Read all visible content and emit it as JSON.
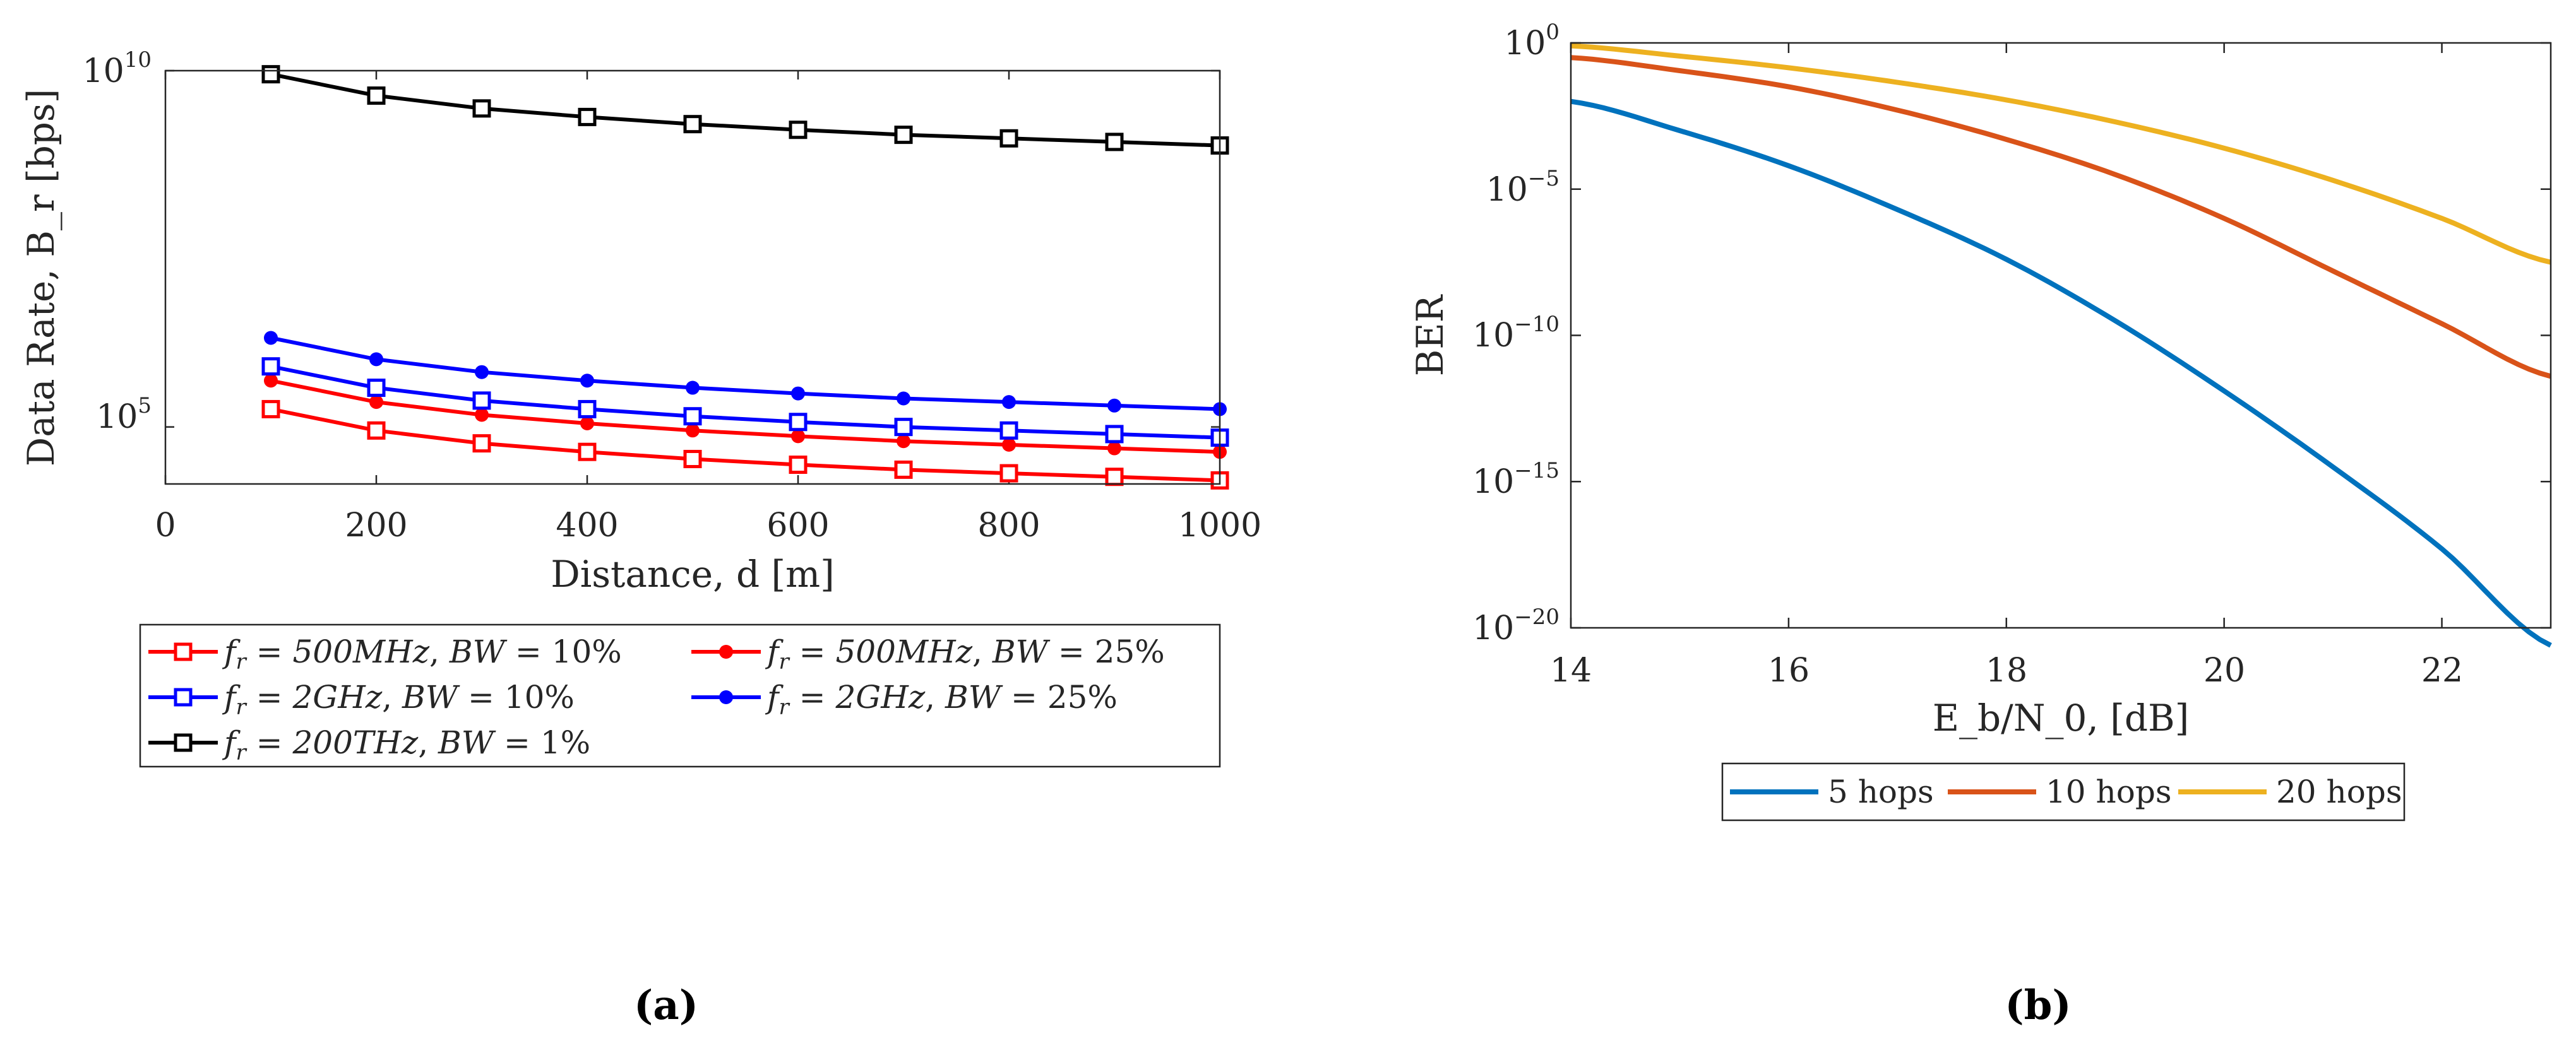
{
  "chart_data": [
    {
      "type": "line",
      "panel_label": "(a)",
      "xlabel": "Distance, d [m]",
      "ylabel": "Data Rate, B_r [bps]",
      "xlim": [
        0,
        1000
      ],
      "ylim_log10": [
        4.2,
        10
      ],
      "yscale": "log",
      "x_ticks": [
        "0",
        "200",
        "400",
        "600",
        "800",
        "1000"
      ],
      "y_ticks": [
        {
          "base": "10",
          "exp": "5",
          "value": 5
        },
        {
          "base": "10",
          "exp": "10",
          "value": 10
        }
      ],
      "legend_position": "below",
      "x": [
        100,
        200,
        300,
        400,
        500,
        600,
        700,
        800,
        900,
        1000
      ],
      "series": [
        {
          "name": "f_r = 500MHz, BW = 10%",
          "legend": {
            "fr_value": "500MHz",
            "bw_value": "10%"
          },
          "color": "#ff0000",
          "marker": "square",
          "log10_values": [
            5.25,
            4.95,
            4.77,
            4.65,
            4.55,
            4.47,
            4.4,
            4.35,
            4.3,
            4.25
          ]
        },
        {
          "name": "f_r = 500MHz, BW = 25%",
          "legend": {
            "fr_value": "500MHz",
            "bw_value": "25%"
          },
          "color": "#ff0000",
          "marker": "circle",
          "log10_values": [
            5.65,
            5.35,
            5.17,
            5.05,
            4.95,
            4.87,
            4.8,
            4.75,
            4.7,
            4.65
          ]
        },
        {
          "name": "f_r = 2GHz, BW = 10%",
          "legend": {
            "fr_value": "2GHz",
            "bw_value": "10%"
          },
          "color": "#0000ff",
          "marker": "square",
          "log10_values": [
            5.85,
            5.55,
            5.37,
            5.25,
            5.15,
            5.07,
            5.0,
            4.95,
            4.9,
            4.85
          ]
        },
        {
          "name": "f_r = 2GHz, BW = 25%",
          "legend": {
            "fr_value": "2GHz",
            "bw_value": "25%"
          },
          "color": "#0000ff",
          "marker": "circle",
          "log10_values": [
            6.25,
            5.95,
            5.77,
            5.65,
            5.55,
            5.47,
            5.4,
            5.35,
            5.3,
            5.25
          ]
        },
        {
          "name": "f_r = 200THz, BW = 1%",
          "legend": {
            "fr_value": "200THz",
            "bw_value": "1%"
          },
          "color": "#000000",
          "marker": "square",
          "log10_values": [
            9.95,
            9.65,
            9.47,
            9.35,
            9.25,
            9.17,
            9.1,
            9.05,
            9.0,
            8.95
          ]
        }
      ]
    },
    {
      "type": "line",
      "panel_label": "(b)",
      "xlabel": "E_b/N_0, [dB]",
      "ylabel": "BER",
      "xlim": [
        14,
        23
      ],
      "ylim_log10": [
        -20,
        0
      ],
      "yscale": "log",
      "x_ticks": [
        "14",
        "16",
        "18",
        "20",
        "22"
      ],
      "y_ticks": [
        {
          "base": "10",
          "exp": "0",
          "value": 0
        },
        {
          "base": "10",
          "exp": "−5",
          "value": -5
        },
        {
          "base": "10",
          "exp": "−10",
          "value": -10
        },
        {
          "base": "10",
          "exp": "−15",
          "value": -15
        },
        {
          "base": "10",
          "exp": "−20",
          "value": -20
        }
      ],
      "legend_position": "below",
      "x": [
        14,
        15,
        16,
        17,
        18,
        19,
        20,
        21,
        22,
        23
      ],
      "series": [
        {
          "name": "5 hops",
          "color": "#0072bd",
          "log10_values": [
            -2.0,
            -3.0,
            -4.2,
            -5.7,
            -7.4,
            -9.5,
            -11.9,
            -14.5,
            -17.3,
            -20.6
          ]
        },
        {
          "name": "10 hops",
          "color": "#d95319",
          "log10_values": [
            -0.5,
            -0.95,
            -1.5,
            -2.3,
            -3.3,
            -4.5,
            -6.0,
            -7.8,
            -9.6,
            -11.4
          ]
        },
        {
          "name": "20 hops",
          "color": "#edb120",
          "log10_values": [
            -0.1,
            -0.45,
            -0.85,
            -1.35,
            -1.95,
            -2.7,
            -3.6,
            -4.7,
            -6.0,
            -7.5
          ]
        }
      ]
    }
  ]
}
